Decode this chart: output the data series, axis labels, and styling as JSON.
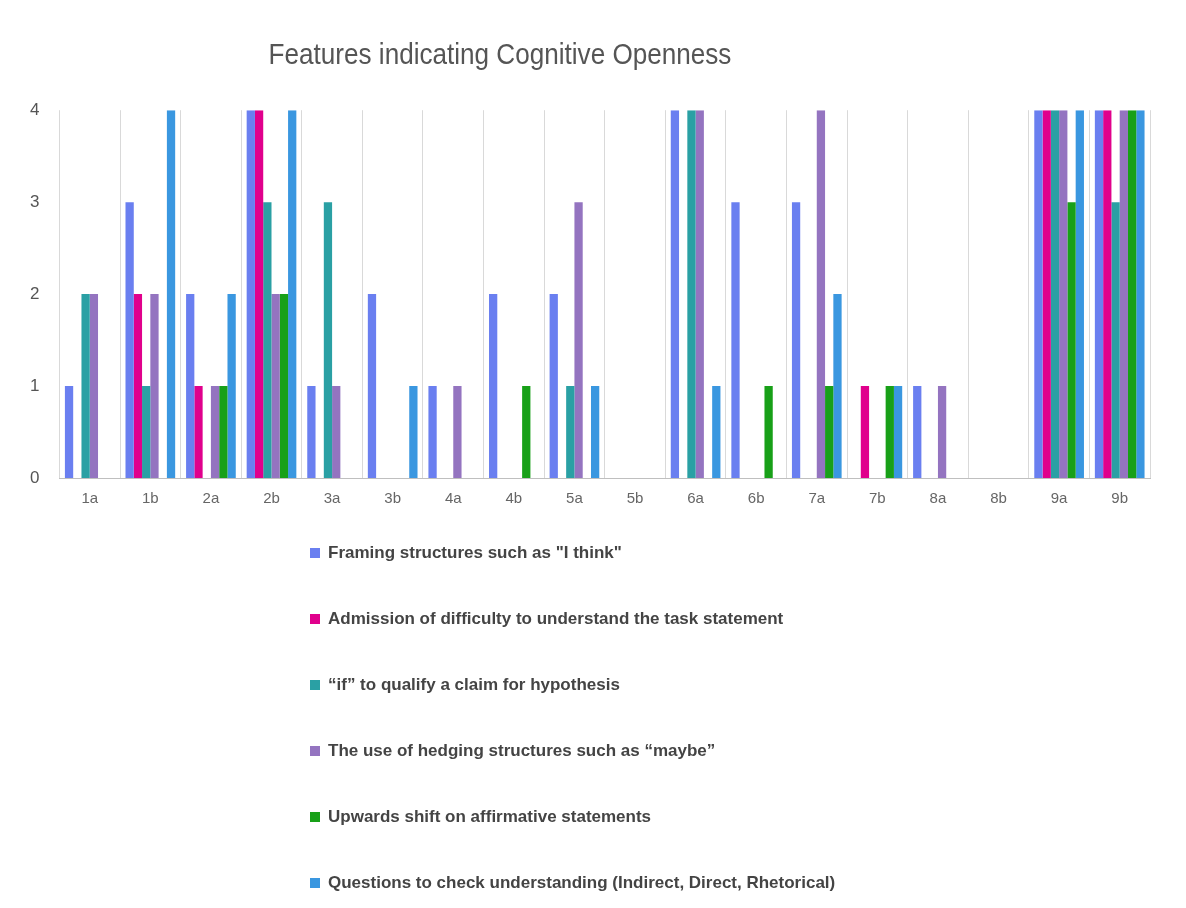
{
  "chart_data": {
    "type": "bar",
    "title": "Features indicating Cognitive Openness",
    "categories": [
      "1a",
      "1b",
      "2a",
      "2b",
      "3a",
      "3b",
      "4a",
      "4b",
      "5a",
      "5b",
      "6a",
      "6b",
      "7a",
      "7b",
      "8a",
      "8b",
      "9a",
      "9b"
    ],
    "series": [
      {
        "name": "Framing structures such as \"I think\"",
        "color": "#6a7ff0",
        "values": [
          1,
          3,
          2,
          4,
          1,
          2,
          1,
          2,
          2,
          0,
          4,
          3,
          3,
          0,
          1,
          0,
          4,
          4
        ]
      },
      {
        "name": "Admission of difficulty to understand the task statement",
        "color": "#e0008c",
        "values": [
          0,
          2,
          1,
          4,
          0,
          0,
          0,
          0,
          0,
          0,
          0,
          0,
          0,
          1,
          0,
          0,
          4,
          4
        ]
      },
      {
        "name": "“if” to qualify a claim for hypothesis",
        "color": "#2aa0a4",
        "values": [
          2,
          1,
          0,
          3,
          3,
          0,
          0,
          0,
          1,
          0,
          4,
          0,
          0,
          0,
          0,
          0,
          4,
          3
        ]
      },
      {
        "name": "The use of hedging structures such as “maybe”",
        "color": "#9474c0",
        "values": [
          2,
          2,
          1,
          2,
          1,
          0,
          1,
          0,
          3,
          0,
          4,
          0,
          4,
          0,
          1,
          0,
          4,
          4
        ]
      },
      {
        "name": "Upwards shift on affirmative statements",
        "color": "#18a018",
        "values": [
          0,
          0,
          1,
          2,
          0,
          0,
          0,
          1,
          0,
          0,
          0,
          1,
          1,
          1,
          0,
          0,
          3,
          4
        ]
      },
      {
        "name": "Questions to check understanding (Indirect, Direct, Rhetorical)",
        "color": "#3a97e0",
        "values": [
          0,
          4,
          2,
          4,
          0,
          1,
          0,
          0,
          1,
          0,
          1,
          0,
          2,
          1,
          0,
          0,
          4,
          4
        ]
      }
    ],
    "ylim": [
      0,
      4
    ],
    "yticks": [
      0,
      1,
      2,
      3,
      4
    ],
    "grid": "x",
    "legend": "bottom"
  }
}
